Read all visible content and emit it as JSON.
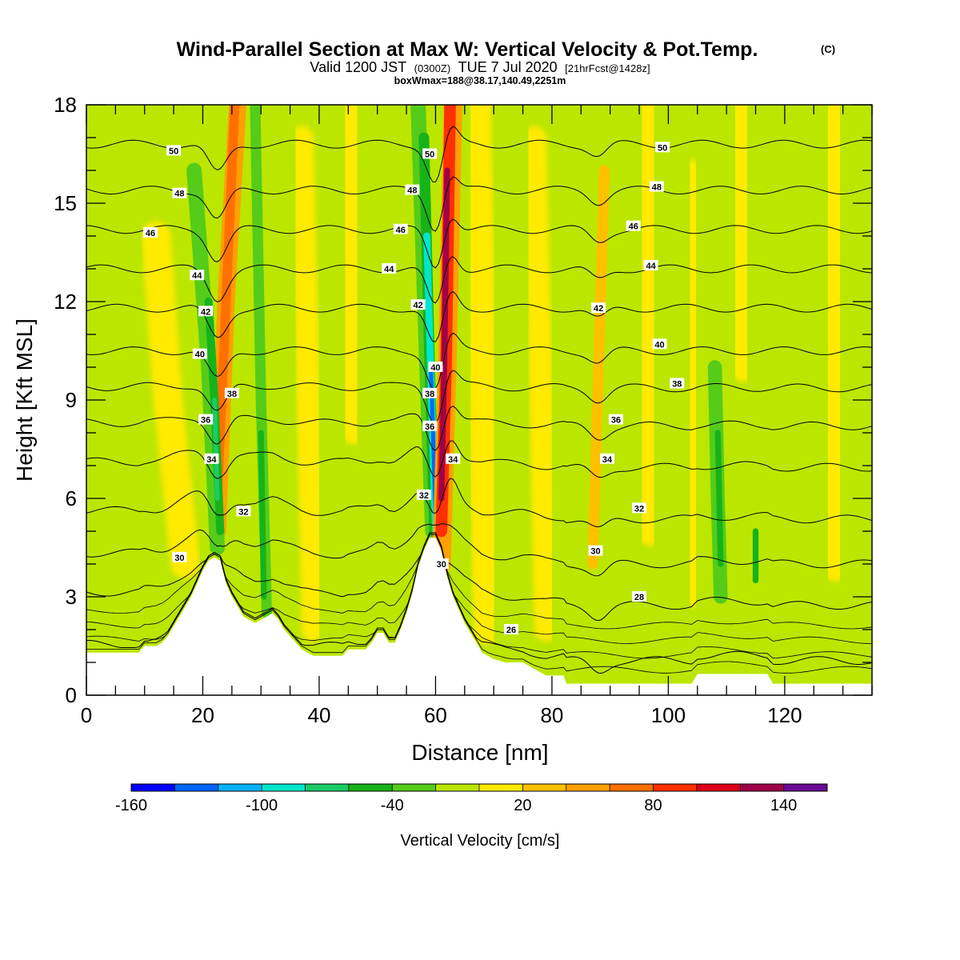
{
  "title": {
    "main": "Wind-Parallel Section at Max W: Vertical Velocity & Pot.Temp.",
    "copyright": "(C)",
    "valid_prefix": "Valid 1200 JST",
    "valid_utc": "(0300Z)",
    "valid_date": "TUE 7 Jul 2020",
    "forecast": "[21hrFcst@1428z]",
    "boxline": "boxWmax=188@38.17,140.49,2251m"
  },
  "chart_data": {
    "type": "heatmap",
    "xlabel": "Distance [nm]",
    "ylabel": "Height [Kft MSL]",
    "xlim": [
      0,
      135
    ],
    "ylim": [
      0,
      18
    ],
    "x_ticks": [
      0,
      20,
      40,
      60,
      80,
      100,
      120
    ],
    "y_ticks": [
      0,
      3,
      6,
      9,
      12,
      15,
      18
    ],
    "colorbar": {
      "label": "Vertical Velocity [cm/s]",
      "tick_labels": [
        -160,
        -100,
        -40,
        20,
        80,
        140
      ],
      "tick_values": [
        -160,
        -100,
        -40,
        20,
        80,
        140
      ],
      "levels": [
        -160,
        -140,
        -120,
        -100,
        -80,
        -60,
        -40,
        -20,
        0,
        20,
        40,
        60,
        80,
        100,
        120,
        140,
        160
      ],
      "colors": [
        "#0000ff",
        "#0066ff",
        "#00b3ff",
        "#00e6cc",
        "#1acc66",
        "#17b31a",
        "#55cc1a",
        "#bbe600",
        "#ffea00",
        "#ffc000",
        "#ffa000",
        "#ff7000",
        "#ff3000",
        "#dd0018",
        "#a0004a",
        "#6a0a96"
      ]
    },
    "background_level": "#bbe600",
    "theta_contours": [
      {
        "value": 26,
        "base_height": 1.5
      },
      {
        "value": 28,
        "base_height": 3.1
      },
      {
        "value": 30,
        "base_height": 4.3
      },
      {
        "value": 32,
        "base_height": 5.6
      },
      {
        "value": 34,
        "base_height": 7.1
      },
      {
        "value": 36,
        "base_height": 8.3
      },
      {
        "value": 38,
        "base_height": 9.4
      },
      {
        "value": 40,
        "base_height": 10.5
      },
      {
        "value": 42,
        "base_height": 11.8
      },
      {
        "value": 44,
        "base_height": 13.0
      },
      {
        "value": 46,
        "base_height": 14.2
      },
      {
        "value": 48,
        "base_height": 15.4
      },
      {
        "value": 50,
        "base_height": 16.8
      }
    ],
    "contour_labels": [
      {
        "text": "50",
        "x": 15,
        "y": 16.6
      },
      {
        "text": "48",
        "x": 16,
        "y": 15.3
      },
      {
        "text": "46",
        "x": 11,
        "y": 14.1
      },
      {
        "text": "44",
        "x": 19,
        "y": 12.8
      },
      {
        "text": "42",
        "x": 20.5,
        "y": 11.7
      },
      {
        "text": "40",
        "x": 19.5,
        "y": 10.4
      },
      {
        "text": "38",
        "x": 25,
        "y": 9.2
      },
      {
        "text": "36",
        "x": 20.5,
        "y": 8.4
      },
      {
        "text": "34",
        "x": 21.5,
        "y": 7.2
      },
      {
        "text": "32",
        "x": 27,
        "y": 5.6
      },
      {
        "text": "30",
        "x": 16,
        "y": 4.2
      },
      {
        "text": "50",
        "x": 59,
        "y": 16.5
      },
      {
        "text": "48",
        "x": 56,
        "y": 15.4
      },
      {
        "text": "46",
        "x": 54,
        "y": 14.2
      },
      {
        "text": "44",
        "x": 52,
        "y": 13.0
      },
      {
        "text": "42",
        "x": 57,
        "y": 11.9
      },
      {
        "text": "40",
        "x": 60,
        "y": 10.0
      },
      {
        "text": "38",
        "x": 59,
        "y": 9.2
      },
      {
        "text": "36",
        "x": 59,
        "y": 8.2
      },
      {
        "text": "34",
        "x": 63,
        "y": 7.2
      },
      {
        "text": "32",
        "x": 58,
        "y": 6.1
      },
      {
        "text": "30",
        "x": 61,
        "y": 4.0
      },
      {
        "text": "26",
        "x": 73,
        "y": 2.0
      },
      {
        "text": "50",
        "x": 99,
        "y": 16.7
      },
      {
        "text": "48",
        "x": 98,
        "y": 15.5
      },
      {
        "text": "46",
        "x": 94,
        "y": 14.3
      },
      {
        "text": "44",
        "x": 97,
        "y": 13.1
      },
      {
        "text": "42",
        "x": 88,
        "y": 11.8
      },
      {
        "text": "40",
        "x": 98.5,
        "y": 10.7
      },
      {
        "text": "38",
        "x": 101.5,
        "y": 9.5
      },
      {
        "text": "36",
        "x": 91,
        "y": 8.4
      },
      {
        "text": "34",
        "x": 89.5,
        "y": 7.2
      },
      {
        "text": "32",
        "x": 95,
        "y": 5.7
      },
      {
        "text": "30",
        "x": 87.5,
        "y": 4.4
      },
      {
        "text": "28",
        "x": 95,
        "y": 3.0
      }
    ],
    "features": [
      {
        "kind": "updraft",
        "x": [
          26,
          24,
          22.5
        ],
        "y": [
          18,
          12,
          5
        ],
        "width": 1.5,
        "level": "#ffa000"
      },
      {
        "kind": "updraft",
        "x": [
          25.5,
          24,
          22.5
        ],
        "y": [
          18,
          12,
          6
        ],
        "width": 0.8,
        "level": "#ff7000"
      },
      {
        "kind": "downdraft",
        "x": [
          18.5,
          21,
          22.5
        ],
        "y": [
          16,
          10,
          4.5
        ],
        "width": 1.3,
        "level": "#55cc1a"
      },
      {
        "kind": "downdraft",
        "x": [
          21,
          22,
          23
        ],
        "y": [
          12,
          9,
          5
        ],
        "width": 0.7,
        "level": "#17b31a"
      },
      {
        "kind": "downdraft",
        "x": [
          22,
          22.5
        ],
        "y": [
          9,
          6
        ],
        "width": 0.4,
        "level": "#1acc66"
      },
      {
        "kind": "downdraft",
        "x": [
          29,
          30,
          31
        ],
        "y": [
          18,
          9,
          2.5
        ],
        "width": 0.9,
        "level": "#55cc1a"
      },
      {
        "kind": "downdraft",
        "x": [
          30,
          30.5
        ],
        "y": [
          8,
          3
        ],
        "width": 0.5,
        "level": "#17b31a"
      },
      {
        "kind": "downdraft",
        "x": [
          57,
          58.5,
          59.5
        ],
        "y": [
          18,
          10,
          5
        ],
        "width": 1.3,
        "level": "#55cc1a"
      },
      {
        "kind": "downdraft",
        "x": [
          58,
          59,
          59.8
        ],
        "y": [
          17,
          10,
          5
        ],
        "width": 0.9,
        "level": "#17b31a"
      },
      {
        "kind": "downdraft",
        "x": [
          58.5,
          59.3,
          60
        ],
        "y": [
          14,
          9,
          5
        ],
        "width": 0.6,
        "level": "#00e6cc"
      },
      {
        "kind": "downdraft",
        "x": [
          59.2,
          60
        ],
        "y": [
          10,
          5.5
        ],
        "width": 0.35,
        "level": "#0066ff"
      },
      {
        "kind": "updraft",
        "x": [
          63,
          62,
          61
        ],
        "y": [
          18,
          10,
          4
        ],
        "width": 1.6,
        "level": "#ffa000"
      },
      {
        "kind": "updraft",
        "x": [
          62.5,
          61.8,
          61
        ],
        "y": [
          18,
          10,
          5
        ],
        "width": 1.0,
        "level": "#ff3000"
      },
      {
        "kind": "updraft",
        "x": [
          62,
          61.5,
          61
        ],
        "y": [
          16,
          10,
          6
        ],
        "width": 0.5,
        "level": "#a0004a"
      },
      {
        "kind": "updraft",
        "x": [
          89,
          88,
          87
        ],
        "y": [
          16,
          10,
          4
        ],
        "width": 0.9,
        "level": "#ffc000"
      },
      {
        "kind": "downdraft",
        "x": [
          108,
          108.5,
          109
        ],
        "y": [
          10,
          6,
          3
        ],
        "width": 1.2,
        "level": "#55cc1a"
      },
      {
        "kind": "downdraft",
        "x": [
          108.5,
          109
        ],
        "y": [
          8,
          4
        ],
        "width": 0.5,
        "level": "#17b31a"
      },
      {
        "kind": "downdraft",
        "x": [
          115,
          115
        ],
        "y": [
          5,
          3.5
        ],
        "width": 0.5,
        "level": "#17b31a"
      },
      {
        "kind": "updraft",
        "x": [
          12,
          14,
          17
        ],
        "y": [
          14,
          9,
          4
        ],
        "width": 2.5,
        "level": "#ffea00"
      },
      {
        "kind": "updraft",
        "x": [
          37,
          38,
          39
        ],
        "y": [
          17,
          10,
          2
        ],
        "width": 2.0,
        "level": "#ffea00"
      },
      {
        "kind": "updraft",
        "x": [
          45,
          46
        ],
        "y": [
          18,
          8
        ],
        "width": 2.0,
        "level": "#ffea00"
      },
      {
        "kind": "updraft",
        "x": [
          67,
          68,
          69
        ],
        "y": [
          18,
          10,
          2
        ],
        "width": 2.5,
        "level": "#ffea00"
      },
      {
        "kind": "updraft",
        "x": [
          77,
          78,
          79
        ],
        "y": [
          17,
          10,
          2
        ],
        "width": 2.0,
        "level": "#ffea00"
      },
      {
        "kind": "updraft",
        "x": [
          96,
          97
        ],
        "y": [
          18,
          5
        ],
        "width": 2.5,
        "level": "#ffea00"
      },
      {
        "kind": "updraft",
        "x": [
          104,
          104.5
        ],
        "y": [
          16,
          3
        ],
        "width": 1.8,
        "level": "#ffea00"
      },
      {
        "kind": "updraft",
        "x": [
          112,
          113
        ],
        "y": [
          18,
          10
        ],
        "width": 2.5,
        "level": "#ffea00"
      },
      {
        "kind": "updraft",
        "x": [
          128,
          129
        ],
        "y": [
          18,
          4
        ],
        "width": 3.0,
        "level": "#ffea00"
      }
    ],
    "terrain": [
      [
        0,
        1.3
      ],
      [
        4,
        1.3
      ],
      [
        8,
        1.3
      ],
      [
        9,
        1.3
      ],
      [
        10,
        1.5
      ],
      [
        11,
        1.5
      ],
      [
        12,
        1.5
      ],
      [
        13,
        1.6
      ],
      [
        14,
        1.8
      ],
      [
        15,
        2.1
      ],
      [
        16,
        2.4
      ],
      [
        17,
        2.7
      ],
      [
        18,
        3.0
      ],
      [
        19,
        3.4
      ],
      [
        20,
        3.8
      ],
      [
        21,
        4.1
      ],
      [
        22,
        4.2
      ],
      [
        23,
        4.1
      ],
      [
        24,
        3.4
      ],
      [
        25,
        3.0
      ],
      [
        26,
        2.7
      ],
      [
        27,
        2.4
      ],
      [
        28,
        2.3
      ],
      [
        29,
        2.2
      ],
      [
        30,
        2.3
      ],
      [
        31,
        2.4
      ],
      [
        32,
        2.5
      ],
      [
        33,
        2.3
      ],
      [
        34,
        2.0
      ],
      [
        35,
        1.8
      ],
      [
        36,
        1.6
      ],
      [
        37,
        1.4
      ],
      [
        38,
        1.3
      ],
      [
        39,
        1.2
      ],
      [
        44,
        1.2
      ],
      [
        45,
        1.4
      ],
      [
        46,
        1.4
      ],
      [
        47,
        1.4
      ],
      [
        48,
        1.4
      ],
      [
        49,
        1.6
      ],
      [
        50,
        1.9
      ],
      [
        51,
        1.9
      ],
      [
        52,
        1.6
      ],
      [
        53,
        1.6
      ],
      [
        54,
        2.0
      ],
      [
        55,
        2.5
      ],
      [
        56,
        3.1
      ],
      [
        57,
        3.9
      ],
      [
        58,
        4.4
      ],
      [
        59,
        4.8
      ],
      [
        60,
        4.8
      ],
      [
        61,
        4.4
      ],
      [
        62,
        3.6
      ],
      [
        63,
        3.0
      ],
      [
        64,
        2.6
      ],
      [
        65,
        2.2
      ],
      [
        66,
        1.9
      ],
      [
        67,
        1.6
      ],
      [
        68,
        1.3
      ],
      [
        69,
        1.2
      ],
      [
        70,
        1.1
      ],
      [
        72,
        1.0
      ],
      [
        75,
        1.0
      ],
      [
        76,
        0.9
      ],
      [
        78,
        0.7
      ],
      [
        79,
        0.6
      ],
      [
        80,
        0.6
      ],
      [
        81,
        0.6
      ],
      [
        82,
        0.6
      ],
      [
        82.5,
        0.35
      ],
      [
        104,
        0.35
      ],
      [
        105,
        0.65
      ],
      [
        112,
        0.65
      ],
      [
        117,
        0.65
      ],
      [
        118,
        0.35
      ],
      [
        135,
        0.35
      ]
    ]
  }
}
